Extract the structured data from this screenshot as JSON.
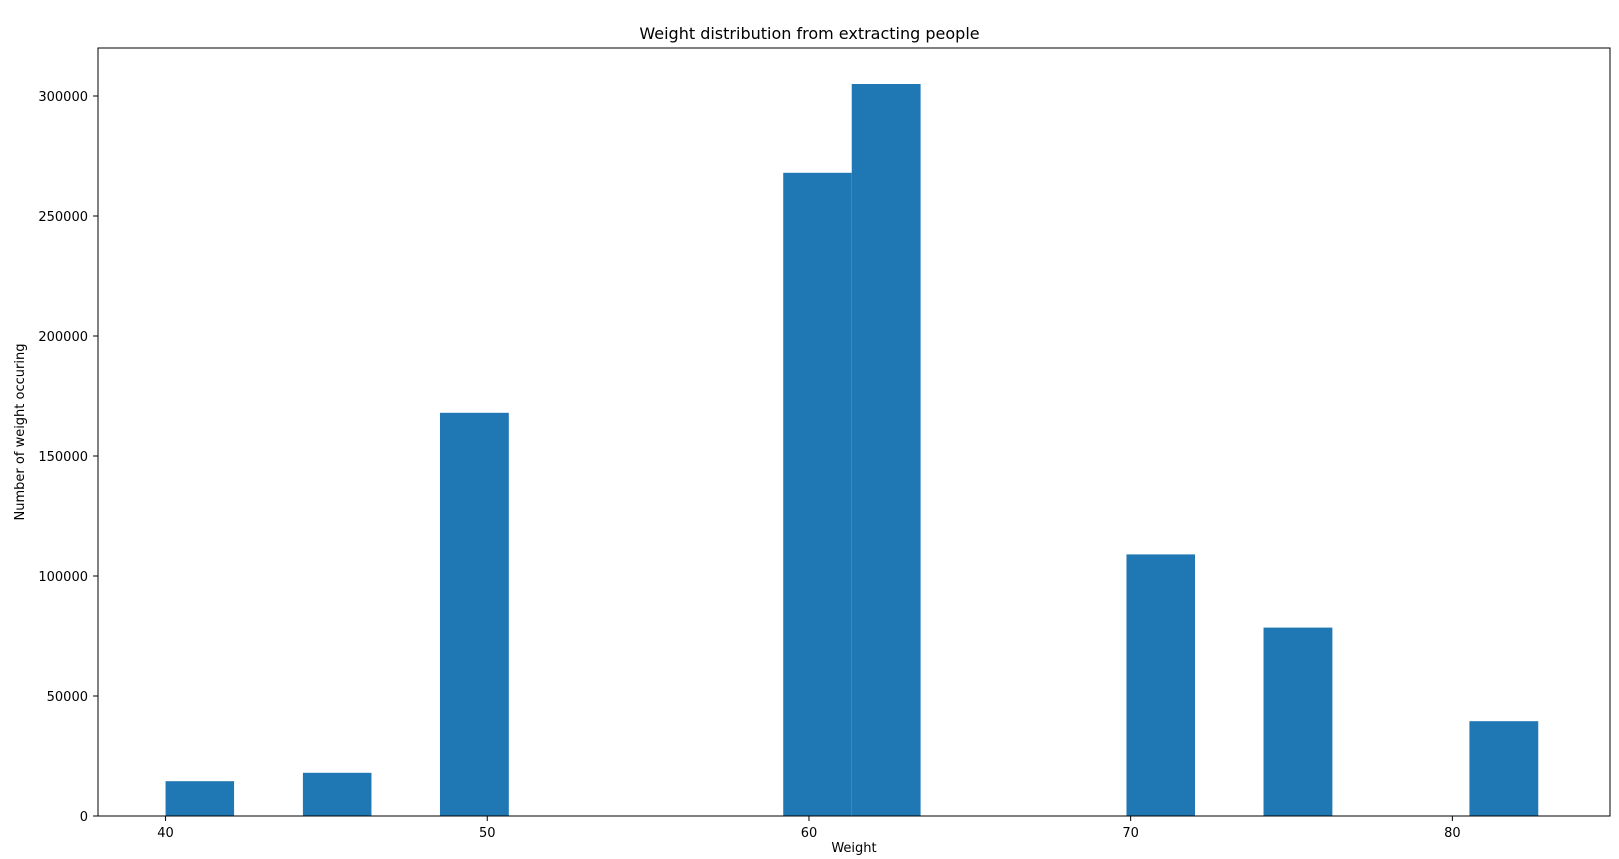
{
  "chart_data": {
    "type": "bar",
    "title": "Weight distribution from extracting people",
    "xlabel": "Weight",
    "ylabel": "Number of weight occuring",
    "xlim": [
      37.9,
      84.9
    ],
    "ylim": [
      0,
      320000
    ],
    "bar_color": "#1f77b4",
    "grid": false,
    "xticks": [
      {
        "value": 40,
        "label": "40"
      },
      {
        "value": 50,
        "label": "50"
      },
      {
        "value": 60,
        "label": "60"
      },
      {
        "value": 70,
        "label": "70"
      },
      {
        "value": 80,
        "label": "80"
      }
    ],
    "yticks": [
      {
        "value": 0,
        "label": "0"
      },
      {
        "value": 50000,
        "label": "50000"
      },
      {
        "value": 100000,
        "label": "100000"
      },
      {
        "value": 150000,
        "label": "150000"
      },
      {
        "value": 200000,
        "label": "200000"
      },
      {
        "value": 250000,
        "label": "250000"
      },
      {
        "value": 300000,
        "label": "300000"
      }
    ],
    "bins": [
      {
        "x0": 40.0,
        "x1": 42.13,
        "value": 14500
      },
      {
        "x0": 44.27,
        "x1": 46.4,
        "value": 18000
      },
      {
        "x0": 48.53,
        "x1": 50.67,
        "value": 168000
      },
      {
        "x0": 59.2,
        "x1": 61.33,
        "value": 268000
      },
      {
        "x0": 61.33,
        "x1": 63.47,
        "value": 305000
      },
      {
        "x0": 69.87,
        "x1": 72.0,
        "value": 109000
      },
      {
        "x0": 74.13,
        "x1": 76.27,
        "value": 78500
      },
      {
        "x0": 80.53,
        "x1": 82.67,
        "value": 39500
      }
    ]
  }
}
